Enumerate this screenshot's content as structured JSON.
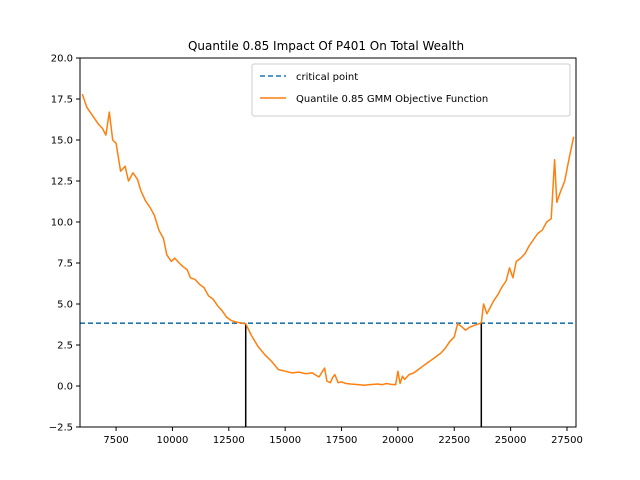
{
  "chart_data": {
    "type": "line",
    "title": "Quantile 0.85 Impact Of P401 On Total Wealth",
    "xlabel": "",
    "ylabel": "",
    "xlim": [
      5900,
      27900
    ],
    "ylim": [
      -2.5,
      20.0
    ],
    "grid": false,
    "legend_position": "top-right",
    "x_ticks": [
      7500,
      10000,
      12500,
      15000,
      17500,
      20000,
      22500,
      25000,
      27500
    ],
    "x_tick_labels": [
      "7500",
      "10000",
      "12500",
      "15000",
      "17500",
      "20000",
      "22500",
      "25000",
      "27500"
    ],
    "y_ticks": [
      -2.5,
      0.0,
      2.5,
      5.0,
      7.5,
      10.0,
      12.5,
      15.0,
      17.5,
      20.0
    ],
    "y_tick_labels": [
      "−2.5",
      "0.0",
      "2.5",
      "5.0",
      "7.5",
      "10.0",
      "12.5",
      "15.0",
      "17.5",
      "20.0"
    ],
    "critical_value": 3.83,
    "confidence_bounds": [
      13250,
      23700
    ],
    "colors": {
      "critical": "#1f77b4",
      "objective": "#ff7f0e",
      "bounds": "#000000"
    },
    "series": [
      {
        "name": "critical point",
        "style": "dashed",
        "x": [
          5900,
          27900
        ],
        "y": [
          3.83,
          3.83
        ]
      },
      {
        "name": "Quantile 0.85 GMM Objective Function",
        "style": "solid",
        "x": [
          6000,
          6200,
          6400,
          6700,
          6900,
          7050,
          7200,
          7350,
          7500,
          7700,
          7900,
          8050,
          8250,
          8450,
          8600,
          8800,
          9000,
          9200,
          9400,
          9600,
          9750,
          9950,
          10100,
          10300,
          10450,
          10650,
          10800,
          11000,
          11200,
          11400,
          11600,
          11800,
          12000,
          12200,
          12400,
          12600,
          12800,
          13000,
          13250,
          13500,
          13800,
          14100,
          14400,
          14700,
          15000,
          15300,
          15600,
          15900,
          16200,
          16500,
          16750,
          16850,
          17000,
          17100,
          17200,
          17350,
          17500,
          17700,
          17900,
          18100,
          18300,
          18500,
          18700,
          18900,
          19100,
          19300,
          19500,
          19700,
          19900,
          20000,
          20100,
          20200,
          20300,
          20500,
          20700,
          20900,
          21100,
          21300,
          21500,
          21700,
          21900,
          22100,
          22300,
          22500,
          22650,
          22850,
          23000,
          23200,
          23400,
          23600,
          23700,
          23800,
          23950,
          24100,
          24250,
          24450,
          24600,
          24800,
          24950,
          25100,
          25250,
          25450,
          25650,
          25800,
          26000,
          26200,
          26400,
          26600,
          26800,
          26950,
          27050,
          27200,
          27400,
          27600,
          27800
        ],
        "y": [
          17.8,
          17.0,
          16.6,
          16.0,
          15.7,
          15.3,
          16.7,
          15.0,
          14.8,
          13.1,
          13.4,
          12.5,
          13.0,
          12.6,
          11.9,
          11.3,
          10.9,
          10.4,
          9.5,
          9.0,
          8.0,
          7.6,
          7.8,
          7.5,
          7.3,
          7.1,
          6.6,
          6.5,
          6.2,
          6.0,
          5.5,
          5.3,
          4.9,
          4.6,
          4.2,
          4.0,
          3.9,
          3.85,
          3.8,
          3.1,
          2.4,
          1.9,
          1.5,
          1.0,
          0.9,
          0.8,
          0.85,
          0.75,
          0.8,
          0.55,
          1.1,
          0.3,
          0.2,
          0.5,
          0.7,
          0.2,
          0.25,
          0.15,
          0.12,
          0.1,
          0.08,
          0.05,
          0.08,
          0.1,
          0.12,
          0.08,
          0.15,
          0.1,
          0.08,
          0.9,
          0.15,
          0.6,
          0.4,
          0.7,
          0.8,
          1.0,
          1.2,
          1.4,
          1.6,
          1.8,
          2.0,
          2.3,
          2.7,
          3.0,
          3.8,
          3.6,
          3.4,
          3.6,
          3.7,
          3.8,
          3.85,
          5.0,
          4.4,
          4.8,
          5.2,
          5.6,
          6.0,
          6.4,
          7.2,
          6.6,
          7.6,
          7.8,
          8.1,
          8.5,
          8.9,
          9.3,
          9.5,
          10.0,
          10.2,
          13.8,
          11.2,
          11.8,
          12.5,
          13.9,
          15.2
        ]
      }
    ],
    "legend": [
      "critical point",
      "Quantile 0.85 GMM Objective Function"
    ]
  }
}
